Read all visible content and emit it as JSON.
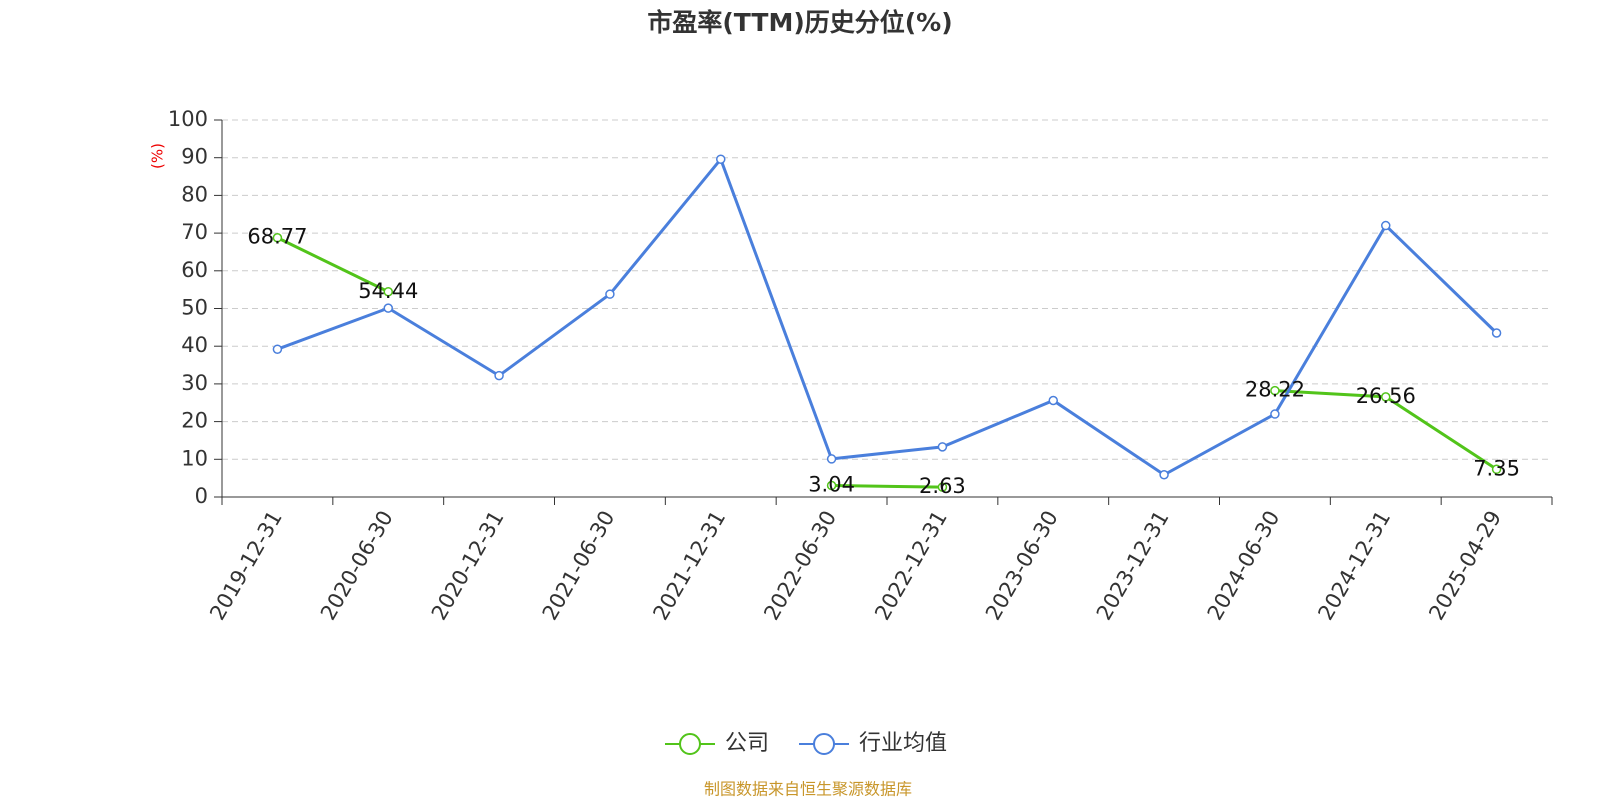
{
  "chart_data": {
    "type": "line",
    "title": "市盈率(TTM)历史分位(%)",
    "y_label": "(%)",
    "categories": [
      "2019-12-31",
      "2020-06-30",
      "2020-12-31",
      "2021-06-30",
      "2021-12-31",
      "2022-06-30",
      "2022-12-31",
      "2023-06-30",
      "2023-12-31",
      "2024-06-30",
      "2024-12-31",
      "2025-04-29"
    ],
    "series": [
      {
        "name": "公司",
        "color": "#52c41a",
        "values": [
          68.77,
          54.44,
          null,
          null,
          null,
          3.04,
          2.63,
          null,
          null,
          28.22,
          26.56,
          7.35
        ],
        "data_labels": true
      },
      {
        "name": "行业均值",
        "color": "#4a7fdc",
        "values": [
          39.2,
          50.1,
          32.2,
          53.8,
          89.6,
          10.1,
          13.3,
          25.6,
          5.9,
          22.0,
          72.0,
          43.5
        ],
        "data_labels": false
      }
    ],
    "ylim": [
      0,
      100
    ],
    "yticks": [
      0,
      10,
      20,
      30,
      40,
      50,
      60,
      70,
      80,
      90,
      100
    ],
    "grid": true,
    "source": "制图数据来自恒生聚源数据库"
  }
}
